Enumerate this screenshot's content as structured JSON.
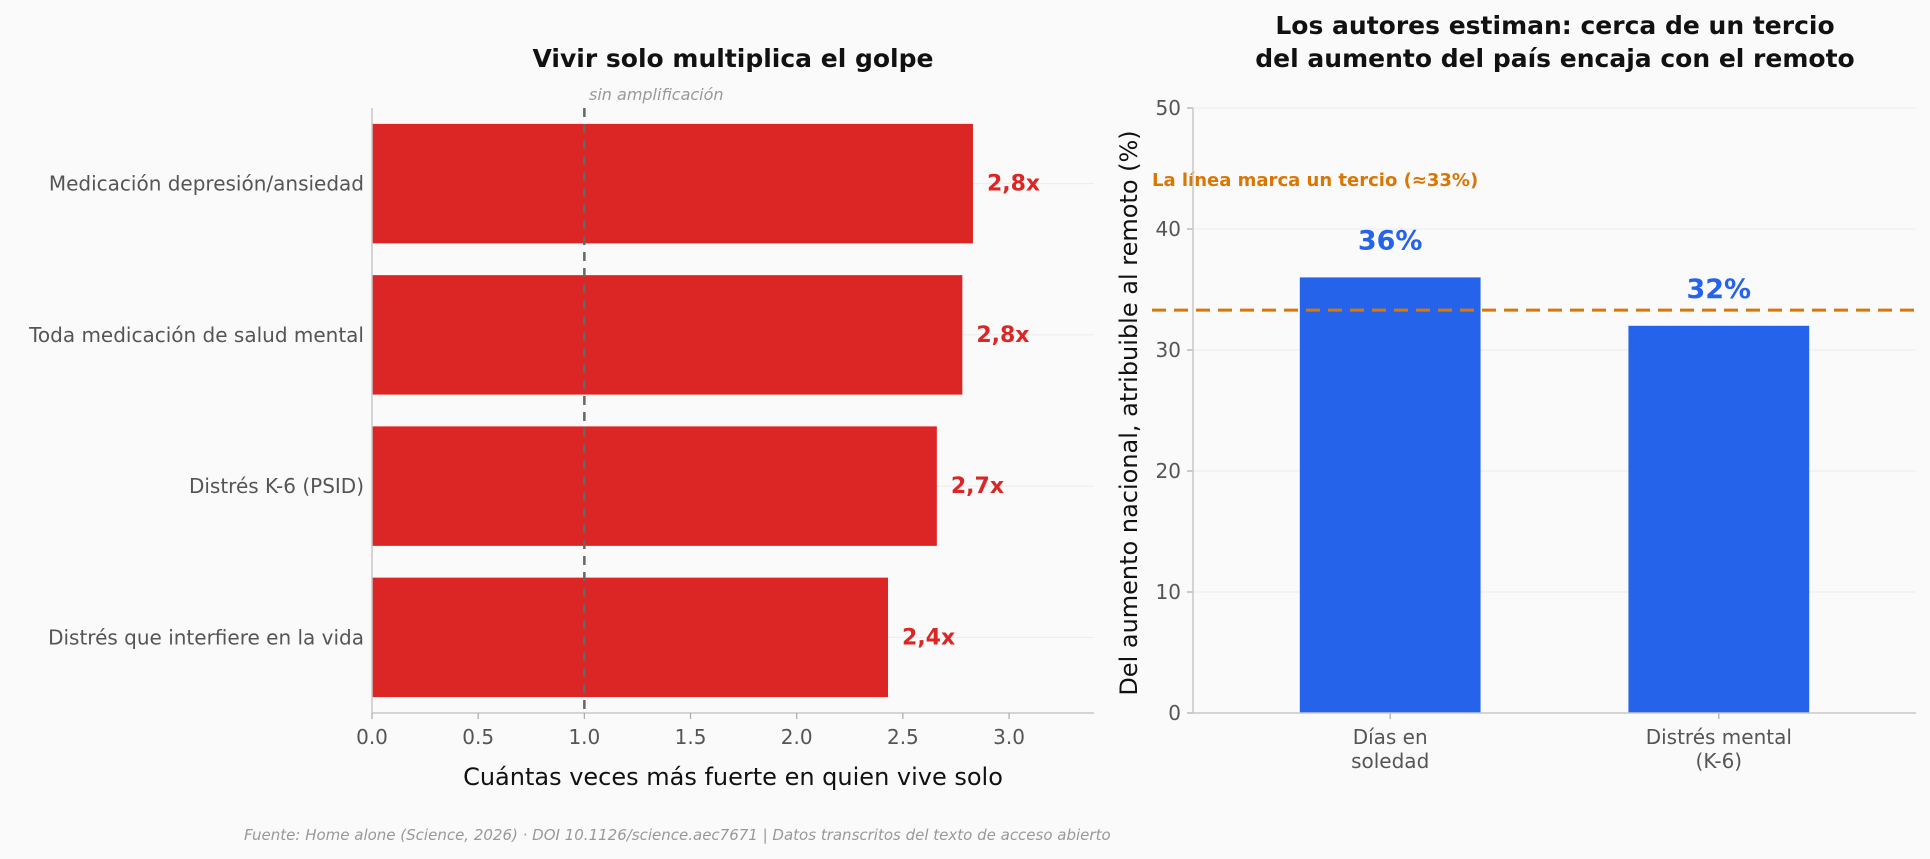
{
  "colors": {
    "red": "#dc2626",
    "blue": "#2563eb",
    "orange": "#d97706",
    "ref": "#666666"
  },
  "source": "Fuente: Home alone (Science, 2026) · DOI 10.1126/science.aec7671 | Datos transcritos del texto de acceso abierto",
  "chart_data": [
    {
      "type": "bar",
      "orientation": "horizontal",
      "title": "Vivir solo multiplica el golpe",
      "xlabel": "Cuántas veces más fuerte en quien vive solo",
      "ylabel": "",
      "categories": [
        "Medicación depresión/ansiedad",
        "Toda medicación de salud mental",
        "Distrés K-6 (PSID)",
        "Distrés que interfiere en la vida"
      ],
      "values": [
        2.83,
        2.78,
        2.66,
        2.43
      ],
      "value_labels": [
        "2,8x",
        "2,8x",
        "2,7x",
        "2,4x"
      ],
      "xlim": [
        0,
        3.4
      ],
      "xticks": [
        "0.0",
        "0.5",
        "1.0",
        "1.5",
        "2.0",
        "2.5",
        "3.0"
      ],
      "reference_line": {
        "x": 1.0,
        "label": "sin amplificación"
      },
      "grid": "horizontal"
    },
    {
      "type": "bar",
      "title_lines": [
        "Los autores estiman: cerca de un tercio",
        "del aumento del país encaja con el remoto"
      ],
      "xlabel": "",
      "ylabel": "Del aumento nacional, atribuible al remoto (%)",
      "categories": [
        [
          "Días en",
          "soledad"
        ],
        [
          "Distrés mental",
          "(K-6)"
        ]
      ],
      "values": [
        36,
        32
      ],
      "value_labels": [
        "36%",
        "32%"
      ],
      "ylim": [
        0,
        50
      ],
      "yticks": [
        "0",
        "10",
        "20",
        "30",
        "40",
        "50"
      ],
      "reference_line": {
        "y": 33.3,
        "label": "La línea marca un tercio (≈33%)"
      },
      "grid": "horizontal"
    }
  ]
}
